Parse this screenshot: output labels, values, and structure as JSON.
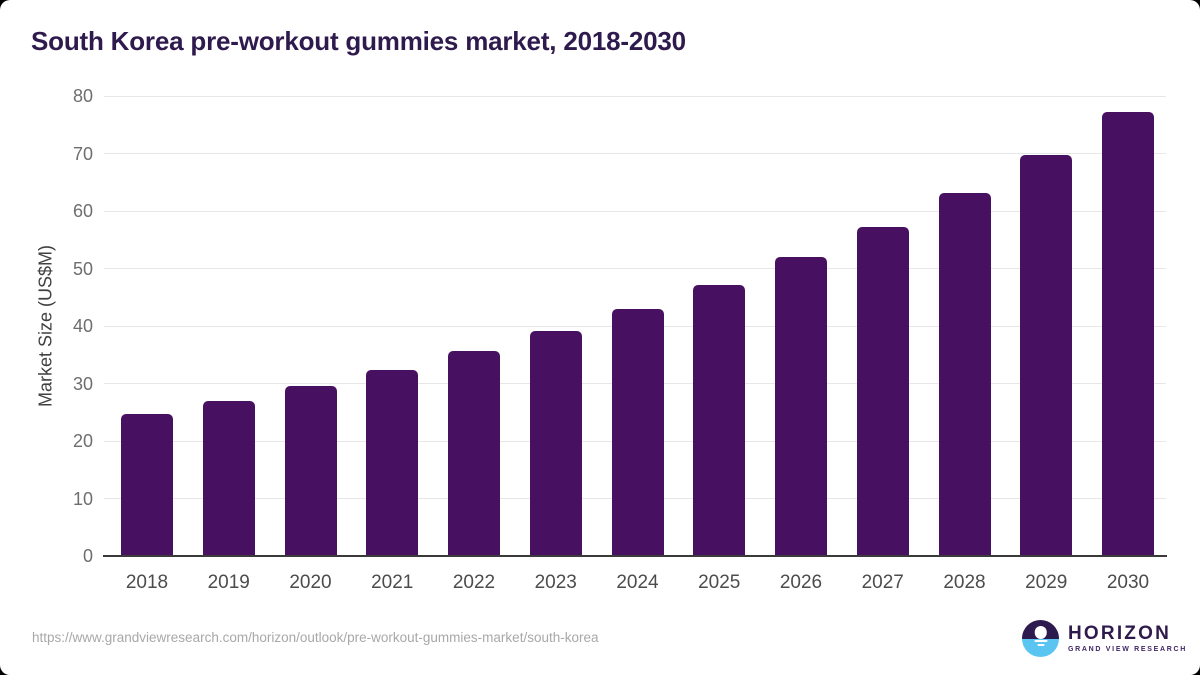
{
  "page": {
    "title": "South Korea pre-workout gummies market, 2018-2030",
    "source_url": "https://www.grandviewresearch.com/horizon/outlook/pre-workout-gummies-market/south-korea"
  },
  "logo": {
    "name": "HORIZON",
    "subtitle": "GRAND VIEW RESEARCH",
    "icon": "sun-over-water-icon",
    "icon_top_color": "#2d1a4e",
    "icon_bottom_color": "#5bc5f2"
  },
  "colors": {
    "bar": "#481061",
    "title_text": "#2f1a4d",
    "y_axis_title": "#404040",
    "y_tick_label": "#6e6e6e",
    "x_tick_label": "#4c4c4c",
    "gridline": "#e7e7e7",
    "axis_line": "#3a3a3a",
    "source_text": "#a8a8a8",
    "background": "#ffffff"
  },
  "chart_data": {
    "type": "bar",
    "title": "South Korea pre-workout gummies market, 2018-2030",
    "categories": [
      "2018",
      "2019",
      "2020",
      "2021",
      "2022",
      "2023",
      "2024",
      "2025",
      "2026",
      "2027",
      "2028",
      "2029",
      "2030"
    ],
    "values": [
      24.7,
      26.9,
      29.5,
      32.3,
      35.7,
      39.1,
      42.9,
      47.2,
      52.0,
      57.3,
      63.1,
      69.8,
      77.2
    ],
    "xlabel": "",
    "ylabel": "Market Size (US$M)",
    "ylim": [
      0,
      80
    ],
    "yticks": [
      0,
      10,
      20,
      30,
      40,
      50,
      60,
      70,
      80
    ],
    "grid": true,
    "legend": false,
    "bar_color": "#481061"
  }
}
